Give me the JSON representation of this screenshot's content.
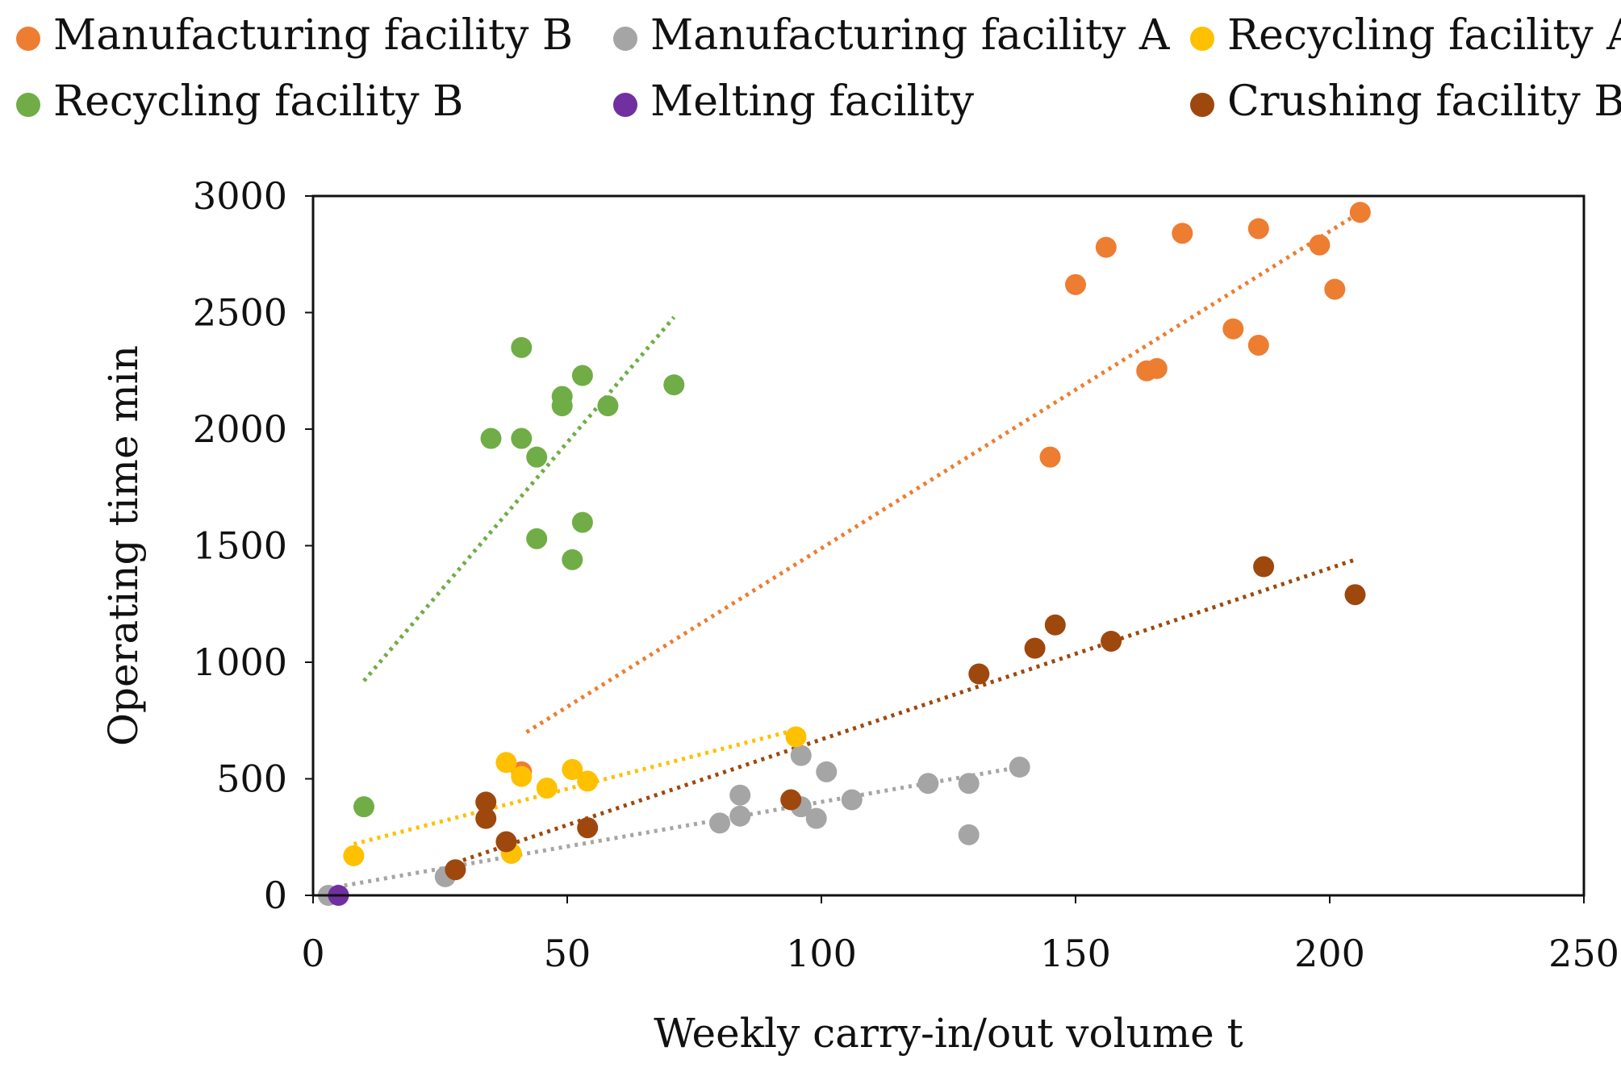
{
  "chart_data": {
    "type": "scatter",
    "title": "",
    "xlabel": "Weekly carry-in/out volume  t",
    "ylabel": "Operating time  min",
    "xlim": [
      0,
      250
    ],
    "ylim": [
      0,
      3000
    ],
    "xticks": [
      0,
      50,
      100,
      150,
      200,
      250
    ],
    "yticks": [
      0,
      500,
      1000,
      1500,
      2000,
      2500,
      3000
    ],
    "grid": false,
    "legend_position": "top",
    "series": [
      {
        "name": "Manufacturing facility B",
        "color": "#ED7D31",
        "points": [
          [
            41,
            530
          ],
          [
            145,
            1880
          ],
          [
            150,
            2620
          ],
          [
            156,
            2780
          ],
          [
            164,
            2250
          ],
          [
            166,
            2260
          ],
          [
            171,
            2840
          ],
          [
            181,
            2430
          ],
          [
            186,
            2860
          ],
          [
            186,
            2360
          ],
          [
            198,
            2790
          ],
          [
            201,
            2600
          ],
          [
            206,
            2930
          ]
        ],
        "trendline": [
          [
            42,
            700
          ],
          [
            206,
            2930
          ]
        ]
      },
      {
        "name": "Manufacturing facility A",
        "color": "#A5A5A5",
        "points": [
          [
            3,
            0
          ],
          [
            26,
            80
          ],
          [
            80,
            310
          ],
          [
            84,
            430
          ],
          [
            84,
            340
          ],
          [
            96,
            600
          ],
          [
            96,
            380
          ],
          [
            99,
            330
          ],
          [
            101,
            530
          ],
          [
            106,
            410
          ],
          [
            121,
            480
          ],
          [
            129,
            480
          ],
          [
            129,
            260
          ],
          [
            139,
            550
          ]
        ],
        "trendline": [
          [
            3,
            30
          ],
          [
            139,
            550
          ]
        ]
      },
      {
        "name": "Recycling facility A",
        "color": "#FFC000",
        "points": [
          [
            8,
            170
          ],
          [
            38,
            570
          ],
          [
            39,
            180
          ],
          [
            41,
            510
          ],
          [
            46,
            460
          ],
          [
            51,
            540
          ],
          [
            54,
            490
          ],
          [
            95,
            680
          ]
        ],
        "trendline": [
          [
            8,
            220
          ],
          [
            95,
            710
          ]
        ]
      },
      {
        "name": "Recycling facility B",
        "color": "#70AD47",
        "points": [
          [
            10,
            380
          ],
          [
            35,
            1960
          ],
          [
            41,
            2350
          ],
          [
            41,
            1960
          ],
          [
            44,
            1880
          ],
          [
            44,
            1530
          ],
          [
            49,
            2140
          ],
          [
            49,
            2100
          ],
          [
            51,
            1440
          ],
          [
            53,
            2230
          ],
          [
            53,
            1600
          ],
          [
            58,
            2100
          ],
          [
            71,
            2190
          ]
        ],
        "trendline": [
          [
            10,
            920
          ],
          [
            71,
            2480
          ]
        ]
      },
      {
        "name": "Melting facility",
        "color": "#7030A0",
        "points": [
          [
            5,
            0
          ]
        ],
        "trendline": null
      },
      {
        "name": "Crushing facility B",
        "color": "#9E480E",
        "points": [
          [
            28,
            110
          ],
          [
            34,
            400
          ],
          [
            34,
            330
          ],
          [
            38,
            230
          ],
          [
            54,
            290
          ],
          [
            94,
            410
          ],
          [
            131,
            950
          ],
          [
            142,
            1060
          ],
          [
            146,
            1160
          ],
          [
            157,
            1090
          ],
          [
            187,
            1410
          ],
          [
            205,
            1290
          ]
        ],
        "trendline": [
          [
            28,
            140
          ],
          [
            205,
            1440
          ]
        ]
      }
    ]
  }
}
